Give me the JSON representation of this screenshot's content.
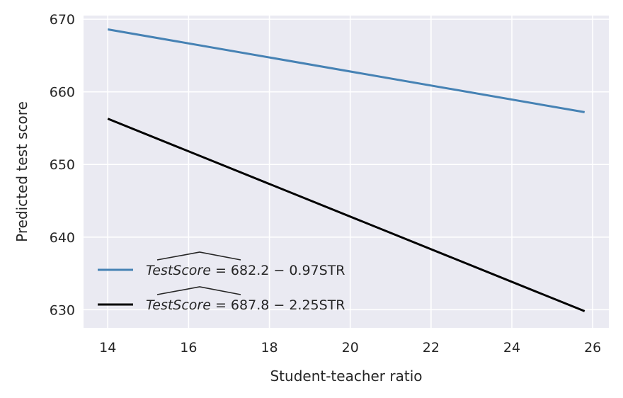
{
  "chart_data": {
    "type": "line",
    "xlabel": "Student-teacher ratio",
    "ylabel": "Predicted test score",
    "xlim": [
      13.4,
      26.4
    ],
    "ylim": [
      627.5,
      670.5
    ],
    "xticks": [
      14,
      16,
      18,
      20,
      22,
      24,
      26
    ],
    "yticks": [
      630,
      640,
      650,
      660,
      670
    ],
    "grid": true,
    "legend_position": "lower-left",
    "series": [
      {
        "name": "TestScore = 682.2 − 0.97STR",
        "legend": {
          "hat": "TestScore",
          "rest": " = 682.2 − 0.97STR"
        },
        "color": "#4682B4",
        "x": [
          14,
          25.8
        ],
        "y": [
          668.6,
          657.2
        ]
      },
      {
        "name": "TestScore = 687.8 − 2.25STR",
        "legend": {
          "hat": "TestScore",
          "rest": " = 687.8 − 2.25STR"
        },
        "color": "#000000",
        "x": [
          14,
          25.8
        ],
        "y": [
          656.3,
          629.8
        ]
      }
    ]
  },
  "colors": {
    "plot_background": "#EAEAF2",
    "grid": "#FFFFFF"
  }
}
